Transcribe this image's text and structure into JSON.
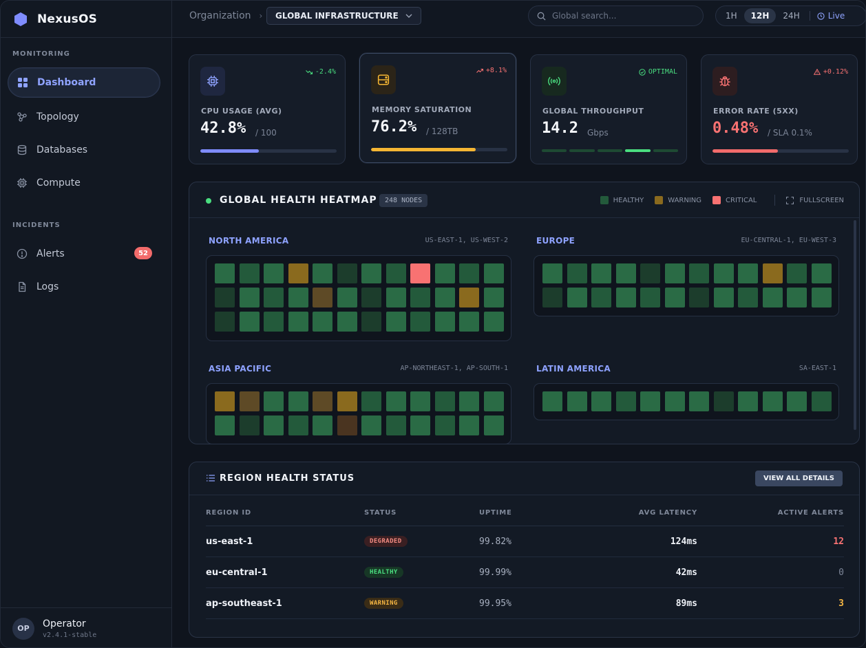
{
  "app": {
    "name": "NexusOS",
    "accent": "#8fa3ff"
  },
  "sidebar": {
    "sections": {
      "monitoring": "MONITORING",
      "incidents": "INCIDENTS"
    },
    "items": [
      {
        "label": "Dashboard",
        "icon": "grid-icon",
        "active": true
      },
      {
        "label": "Topology",
        "icon": "topology-icon"
      },
      {
        "label": "Databases",
        "icon": "database-icon"
      },
      {
        "label": "Compute",
        "icon": "chip-icon"
      },
      {
        "label": "Alerts",
        "icon": "alert-icon",
        "badge": "52"
      },
      {
        "label": "Logs",
        "icon": "file-icon"
      }
    ],
    "user": {
      "initials": "OP",
      "name": "Operator",
      "version": "v2.4.1-stable"
    }
  },
  "topbar": {
    "breadcrumb": "Organization",
    "org": "GLOBAL INFRASTRUCTURE",
    "search_placeholder": "Global search...",
    "ranges": [
      "1H",
      "12H",
      "24H"
    ],
    "selected_range": "12H",
    "live": "Live"
  },
  "stats": [
    {
      "label": "CPU USAGE (AVG)",
      "value": "42.8%",
      "unit": "/ 100",
      "delta": "-2.4%",
      "delta_color": "#4ade80",
      "progress": 0.43,
      "bar_color": "#7f8cff"
    },
    {
      "label": "MEMORY SATURATION",
      "value": "76.2%",
      "unit": "/ 128TB",
      "delta": "+8.1%",
      "delta_color": "#f87272",
      "progress": 0.77,
      "bar_color": "#f5b633"
    },
    {
      "label": "GLOBAL THROUGHPUT",
      "value": "14.2",
      "unit": "Gbps",
      "delta": "OPTIMAL",
      "delta_color": "#4ade80",
      "active_segment": 4,
      "segments": 5
    },
    {
      "label": "ERROR RATE (5XX)",
      "value": "0.48%",
      "unit": "/ SLA 0.1%",
      "delta": "+0.12%",
      "delta_color": "#f87272",
      "progress": 0.48,
      "bar_color": "#f26b6b",
      "value_color": "#f87272"
    }
  ],
  "heatmap": {
    "title": "GLOBAL HEALTH HEATMAP",
    "nodes": "248 NODES",
    "legend": {
      "healthy": "HEALTHY",
      "warning": "WARNING",
      "critical": "CRITICAL",
      "fullscreen": "FULLSCREEN"
    },
    "regions": [
      {
        "name": "NORTH AMERICA",
        "zones": "US-EAST-1, US-WEST-2",
        "cells": [
          "h1",
          "h2",
          "h1",
          "w",
          "h1",
          "h3",
          "h1",
          "h2",
          "c",
          "h1",
          "h2",
          "h1",
          "h3",
          "h1",
          "h2",
          "h1",
          "w2",
          "h1",
          "h3",
          "h1",
          "h2",
          "h1",
          "w",
          "h1",
          "h3",
          "h1",
          "h2",
          "h1",
          "h1",
          "h1",
          "h3",
          "h1",
          "h2",
          "h1",
          "h1",
          "h1"
        ]
      },
      {
        "name": "EUROPE",
        "zones": "EU-CENTRAL-1, EU-WEST-3",
        "cells": [
          "h1",
          "h2",
          "h1",
          "h1",
          "h3",
          "h1",
          "h2",
          "h1",
          "h1",
          "w",
          "h2",
          "h1",
          "h3",
          "h1",
          "h2",
          "h1",
          "h2",
          "h1",
          "h3",
          "h1",
          "h2",
          "h1",
          "h1",
          "h1"
        ]
      },
      {
        "name": "ASIA PACIFIC",
        "zones": "AP-NORTHEAST-1, AP-SOUTH-1",
        "cells": [
          "w",
          "w2",
          "h1",
          "h1",
          "w2",
          "w",
          "h2",
          "h1",
          "h1",
          "h2",
          "h1",
          "h1",
          "h1",
          "h3",
          "h1",
          "h2",
          "h1",
          "w3",
          "h1",
          "h2",
          "h1",
          "h2",
          "h1",
          "h1"
        ]
      },
      {
        "name": "LATIN AMERICA",
        "zones": "SA-EAST-1",
        "cells": [
          "h1",
          "h1",
          "h1",
          "h2",
          "h1",
          "h1",
          "h1",
          "h3",
          "h1",
          "h1",
          "h1",
          "h2"
        ]
      }
    ]
  },
  "table": {
    "title": "REGION HEALTH STATUS",
    "button": "VIEW ALL DETAILS",
    "columns": [
      "REGION ID",
      "STATUS",
      "UPTIME",
      "AVG LATENCY",
      "ACTIVE ALERTS"
    ],
    "rows": [
      {
        "region": "us-east-1",
        "status": "DEGRADED",
        "status_type": "degraded",
        "uptime": "99.82%",
        "latency": "124ms",
        "alerts": "12",
        "alerts_color": "#f87272"
      },
      {
        "region": "eu-central-1",
        "status": "HEALTHY",
        "status_type": "healthy",
        "uptime": "99.99%",
        "latency": "42ms",
        "alerts": "0",
        "alerts_color": "#7c8597"
      },
      {
        "region": "ap-southeast-1",
        "status": "WARNING",
        "status_type": "warning",
        "uptime": "99.95%",
        "latency": "89ms",
        "alerts": "3",
        "alerts_color": "#f5b643"
      }
    ]
  }
}
